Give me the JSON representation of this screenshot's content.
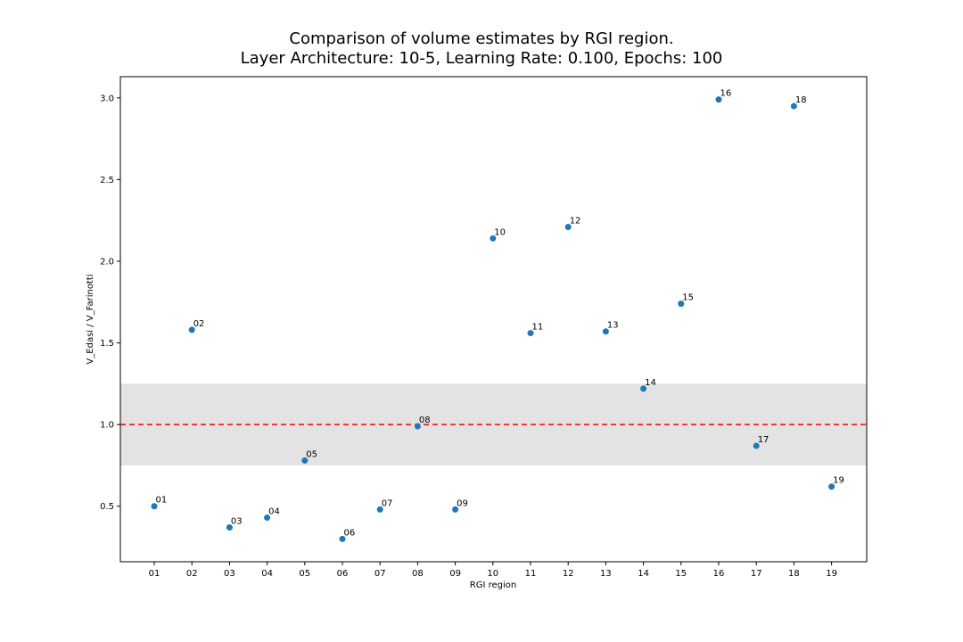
{
  "chart_data": {
    "type": "scatter",
    "title_line1": "Comparison of volume estimates by RGI region.",
    "title_line2": "Layer Architecture: 10-5, Learning Rate: 0.100, Epochs: 100",
    "xlabel": "RGI region",
    "ylabel": "V_Edasi / V_Farinotti",
    "categories": [
      "01",
      "02",
      "03",
      "04",
      "05",
      "06",
      "07",
      "08",
      "09",
      "10",
      "11",
      "12",
      "13",
      "14",
      "15",
      "16",
      "17",
      "18",
      "19"
    ],
    "values": [
      0.5,
      1.58,
      0.37,
      0.43,
      0.78,
      0.3,
      0.48,
      0.99,
      0.48,
      2.14,
      1.56,
      2.21,
      1.57,
      1.22,
      1.74,
      2.99,
      0.87,
      2.95,
      0.62
    ],
    "point_labels": [
      "01",
      "02",
      "03",
      "04",
      "05",
      "06",
      "07",
      "08",
      "09",
      "10",
      "11",
      "12",
      "13",
      "14",
      "15",
      "16",
      "17",
      "18",
      "19"
    ],
    "yticks": [
      "0.5",
      "1.0",
      "1.5",
      "2.0",
      "2.5",
      "3.0"
    ],
    "ylim": [
      0.16,
      3.13
    ],
    "reference_line": 1.0,
    "band": [
      0.75,
      1.25
    ],
    "colors": {
      "points": "#1f77b4",
      "reference_line": "#ff0000",
      "band": "#e3e3e3"
    },
    "grid": false
  }
}
